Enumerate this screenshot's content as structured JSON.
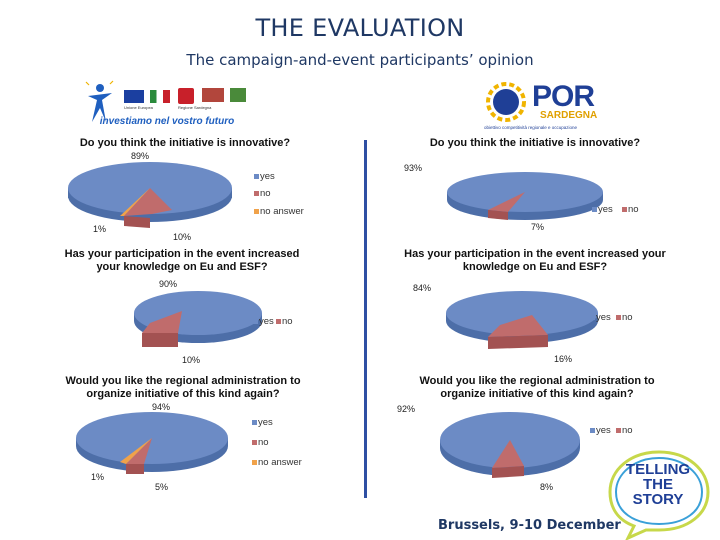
{
  "header": {
    "title": "THE EVALUATION",
    "subtitle": "The campaign-and-event participants’ opinion"
  },
  "logos": {
    "left_tagline": "investiamo nel vostro futuro",
    "left_flag_labels": [
      "Unione Europea",
      "Regione Sardegna"
    ],
    "por_label": "POR",
    "por_region": "SARDEGNA",
    "por_sub": "obiettivo competitività regionale e occupazione",
    "telling": [
      "TELLING",
      "THE",
      "STORY"
    ]
  },
  "colors": {
    "yes": "#6c8bc5",
    "no": "#c06c6c",
    "no_answer": "#f0a24a",
    "accent": "#1f3864"
  },
  "charts": {
    "c1": {
      "question": "Do you think the initiative is innovative?",
      "yes_pct": "89%",
      "no_pct": "10%",
      "na_pct": "1%",
      "legend": [
        "yes",
        "no",
        "no answer"
      ]
    },
    "c2": {
      "question": "Do you think the initiative is innovative?",
      "yes_pct": "93%",
      "no_pct": "7%",
      "legend": [
        "yes",
        "no"
      ]
    },
    "c3": {
      "question": "Has your participation in the event increased your knowledge on Eu and ESF?",
      "yes_pct": "90%",
      "no_pct": "10%",
      "legend": [
        "yes",
        "no"
      ]
    },
    "c4": {
      "question": "Has your participation in the event increased your knowledge on Eu and ESF?",
      "yes_pct": "84%",
      "no_pct": "16%",
      "legend": [
        "yes",
        "no"
      ]
    },
    "c5": {
      "question": "Would you like the regional administration to organize initiative of this kind again?",
      "yes_pct": "94%",
      "no_pct": "5%",
      "na_pct": "1%",
      "legend": [
        "yes",
        "no",
        "no answer"
      ]
    },
    "c6": {
      "question": "Would you like the regional administration to organize initiative of this kind again?",
      "yes_pct": "92%",
      "no_pct": "8%",
      "legend": [
        "yes",
        "no"
      ]
    }
  },
  "chart_data": [
    {
      "type": "pie",
      "title": "Do you think the initiative is innovative?",
      "categories": [
        "yes",
        "no",
        "no answer"
      ],
      "values": [
        89,
        10,
        1
      ]
    },
    {
      "type": "pie",
      "title": "Do you think the initiative is innovative?",
      "categories": [
        "yes",
        "no"
      ],
      "values": [
        93,
        7
      ]
    },
    {
      "type": "pie",
      "title": "Has your participation in the event increased your knowledge on Eu and ESF?",
      "categories": [
        "yes",
        "no"
      ],
      "values": [
        90,
        10
      ]
    },
    {
      "type": "pie",
      "title": "Has your participation in the event increased your knowledge on Eu and ESF?",
      "categories": [
        "yes",
        "no"
      ],
      "values": [
        84,
        16
      ]
    },
    {
      "type": "pie",
      "title": "Would you like the regional administration to organize initiative of this kind again?",
      "categories": [
        "yes",
        "no",
        "no answer"
      ],
      "values": [
        94,
        5,
        1
      ]
    },
    {
      "type": "pie",
      "title": "Would you like the regional administration to organize initiative of this kind again?",
      "categories": [
        "yes",
        "no"
      ],
      "values": [
        92,
        8
      ]
    }
  ],
  "footer": {
    "location": "Brussels, 9-10 December"
  }
}
